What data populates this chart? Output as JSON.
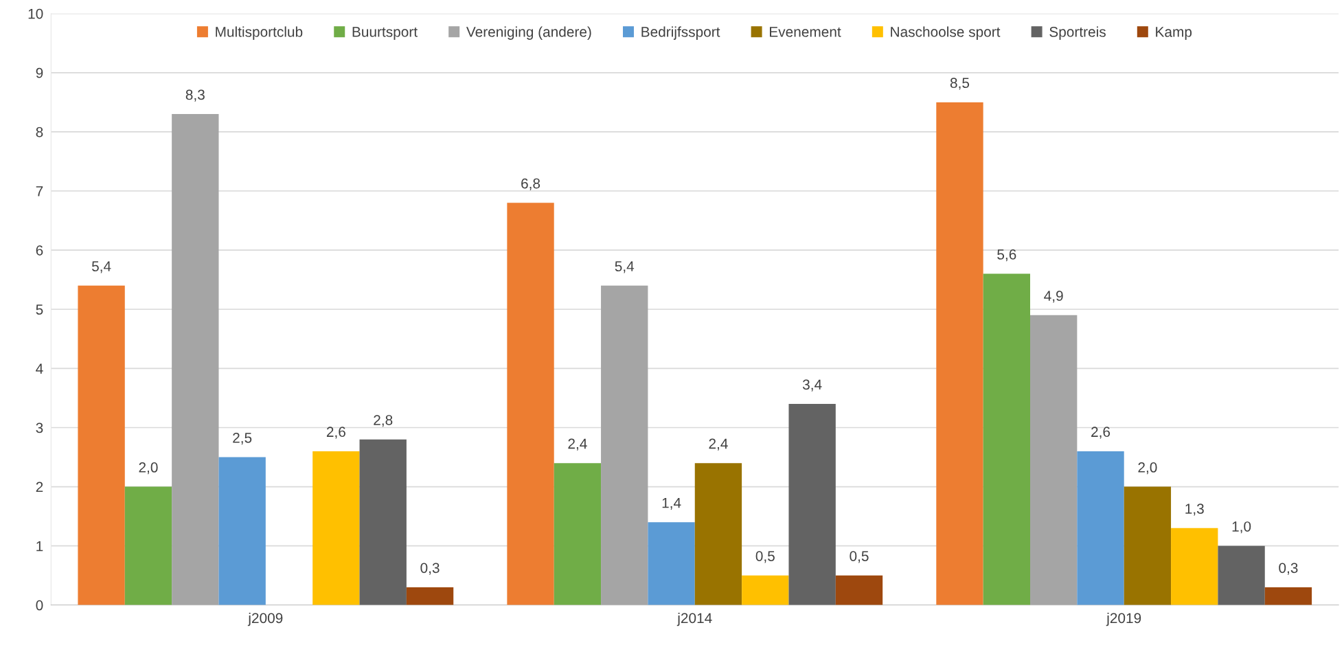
{
  "chart_data": {
    "type": "bar",
    "categories": [
      "j2009",
      "j2014",
      "j2019"
    ],
    "series": [
      {
        "name": "Multisportclub",
        "color": "#ed7d31",
        "values": [
          5.4,
          6.8,
          8.5
        ],
        "value_labels": [
          "5,4",
          "6,8",
          "8,5"
        ]
      },
      {
        "name": "Buurtsport",
        "color": "#70ad47",
        "values": [
          2.0,
          2.4,
          5.6
        ],
        "value_labels": [
          "2,0",
          "2,4",
          "5,6"
        ]
      },
      {
        "name": "Vereniging (andere)",
        "color": "#a5a5a5",
        "values": [
          8.3,
          5.4,
          4.9
        ],
        "value_labels": [
          "8,3",
          "5,4",
          "4,9"
        ]
      },
      {
        "name": "Bedrijfssport",
        "color": "#5b9bd5",
        "values": [
          2.5,
          1.4,
          2.6
        ],
        "value_labels": [
          "2,5",
          "1,4",
          "2,6"
        ]
      },
      {
        "name": "Evenement",
        "color": "#997300",
        "values": [
          null,
          2.4,
          2.0
        ],
        "value_labels": [
          null,
          "2,4",
          "2,0"
        ]
      },
      {
        "name": "Naschoolse sport",
        "color": "#ffc000",
        "values": [
          2.6,
          0.5,
          1.3
        ],
        "value_labels": [
          "2,6",
          "0,5",
          "1,3"
        ]
      },
      {
        "name": "Sportreis",
        "color": "#636363",
        "values": [
          2.8,
          3.4,
          1.0
        ],
        "value_labels": [
          "2,8",
          "3,4",
          "1,0"
        ]
      },
      {
        "name": "Kamp",
        "color": "#9e480e",
        "values": [
          0.3,
          0.5,
          0.3
        ],
        "value_labels": [
          "0,3",
          "0,5",
          "0,3"
        ]
      }
    ],
    "ylim": [
      0,
      10
    ],
    "yticks": [
      0,
      1,
      2,
      3,
      4,
      5,
      6,
      7,
      8,
      9,
      10
    ],
    "grid": "y",
    "legend": "top"
  }
}
